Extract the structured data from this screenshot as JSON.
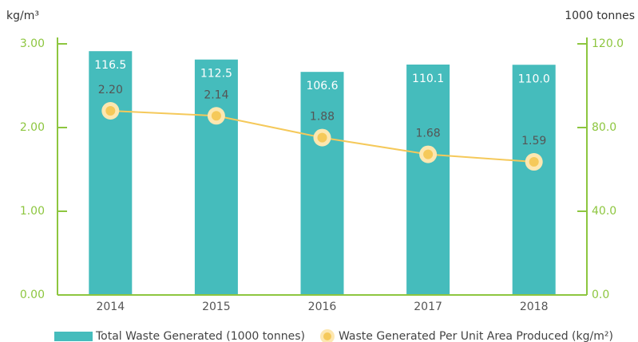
{
  "chart_data": {
    "type": "bar",
    "ylabel": "kg/m³",
    "y2label": "1000 tonnes",
    "categories": [
      "2014",
      "2015",
      "2016",
      "2017",
      "2018"
    ],
    "series": [
      {
        "name": "Total Waste Generated (1000 tonnes)",
        "type": "bar",
        "axis": "y2",
        "color": "#45bcbc",
        "values": [
          116.5,
          112.5,
          106.6,
          110.1,
          110.0
        ],
        "value_labels": [
          "116.5",
          "112.5",
          "106.6",
          "110.1",
          "110.0"
        ]
      },
      {
        "name": "Waste Generated Per Unit Area Produced (kg/m²)",
        "type": "line",
        "axis": "y",
        "color": "#f5c95a",
        "values": [
          2.2,
          2.14,
          1.88,
          1.68,
          1.59
        ],
        "value_labels": [
          "2.20",
          "2.14",
          "1.88",
          "1.68",
          "1.59"
        ]
      }
    ],
    "ylim": [
      0,
      3
    ],
    "yticks": [
      {
        "value": 0,
        "label": "0.00"
      },
      {
        "value": 1,
        "label": "1.00"
      },
      {
        "value": 2,
        "label": "2.00"
      },
      {
        "value": 3,
        "label": "3.00"
      }
    ],
    "y2lim": [
      0,
      120
    ],
    "y2ticks": [
      {
        "value": 0,
        "label": "0.0"
      },
      {
        "value": 40,
        "label": "40.0"
      },
      {
        "value": 80,
        "label": "80.0"
      },
      {
        "value": 120,
        "label": "120.0"
      }
    ],
    "axis_color": "#8dc63f",
    "legend": "bottom"
  }
}
